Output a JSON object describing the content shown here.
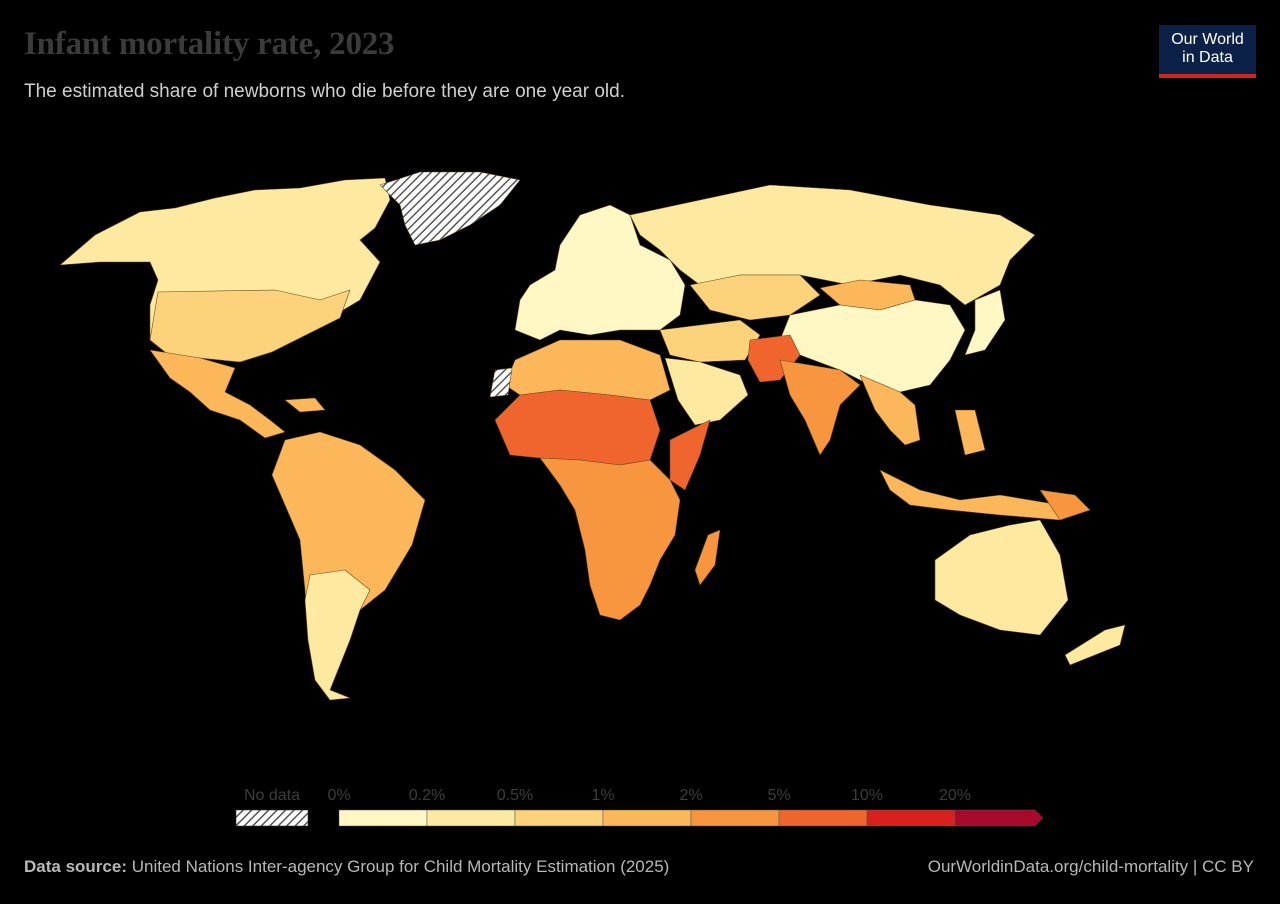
{
  "title": "Infant mortality rate, 2023",
  "subtitle": "The estimated share of newborns who die before they are one year old.",
  "logo": {
    "line1": "Our World",
    "line2": "in Data"
  },
  "legend": {
    "no_data_label": "No data",
    "bins": [
      {
        "label": "0%",
        "color": "#fff7c4"
      },
      {
        "label": "0.2%",
        "color": "#fde9a0"
      },
      {
        "label": "0.5%",
        "color": "#fcd27a"
      },
      {
        "label": "1%",
        "color": "#fbb75a"
      },
      {
        "label": "2%",
        "color": "#f7963e"
      },
      {
        "label": "5%",
        "color": "#f0642d"
      },
      {
        "label": "10%",
        "color": "#d8201f"
      },
      {
        "label": "20%",
        "color": "#a8082a"
      }
    ]
  },
  "regions": [
    {
      "name": "North America",
      "value": "0.5%"
    },
    {
      "name": "Central America",
      "value": "1%"
    },
    {
      "name": "South America",
      "value": "1%"
    },
    {
      "name": "Greenland",
      "value": "No data"
    },
    {
      "name": "Europe",
      "value": "0.2%"
    },
    {
      "name": "Russia",
      "value": "0.2%"
    },
    {
      "name": "China",
      "value": "0.2%"
    },
    {
      "name": "Mongolia",
      "value": "1%"
    },
    {
      "name": "North Africa",
      "value": "1%"
    },
    {
      "name": "Sahel",
      "value": "5%"
    },
    {
      "name": "Central Africa",
      "value": "2%"
    },
    {
      "name": "Southern Africa",
      "value": "2%"
    },
    {
      "name": "Somalia",
      "value": "5%"
    },
    {
      "name": "Arabia",
      "value": "0.5%"
    },
    {
      "name": "Pakistan",
      "value": "5%"
    },
    {
      "name": "India",
      "value": "2%"
    },
    {
      "name": "Southeast Asia",
      "value": "1%"
    },
    {
      "name": "Indonesia",
      "value": "1%"
    },
    {
      "name": "Australia",
      "value": "0.2%"
    },
    {
      "name": "Western Sahara",
      "value": "No data"
    }
  ],
  "footer": {
    "source_label": "Data source:",
    "source_text": " United Nations Inter-agency Group for Child Mortality Estimation (2025)",
    "url": "OurWorldinData.org/child-mortality | CC BY"
  }
}
